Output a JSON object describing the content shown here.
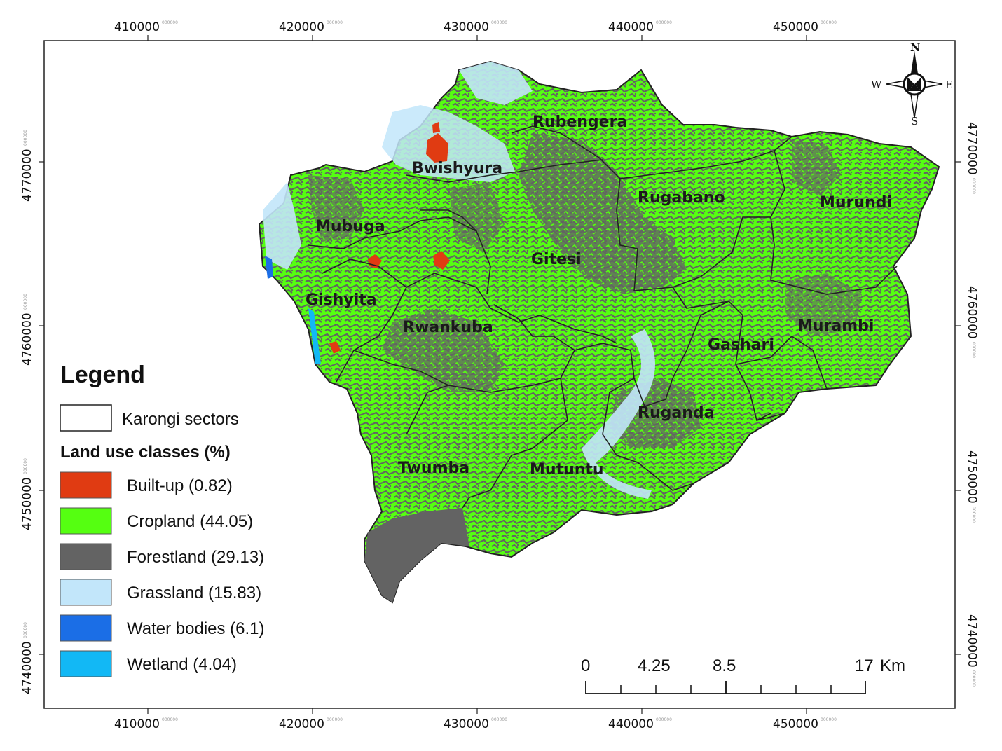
{
  "map": {
    "x_ticks": [
      {
        "main": "410000",
        "sup": "000000"
      },
      {
        "main": "420000",
        "sup": "000000"
      },
      {
        "main": "430000",
        "sup": "000000"
      },
      {
        "main": "440000",
        "sup": "000000"
      },
      {
        "main": "450000",
        "sup": "000000"
      }
    ],
    "y_ticks": [
      {
        "main": "4770000",
        "sup": "000000"
      },
      {
        "main": "4760000",
        "sup": "000000"
      },
      {
        "main": "4750000",
        "sup": "000000"
      },
      {
        "main": "4740000",
        "sup": "000000"
      }
    ],
    "sectors": [
      {
        "name": "Rubengera"
      },
      {
        "name": "Bwishyura"
      },
      {
        "name": "Rugabano"
      },
      {
        "name": "Murundi"
      },
      {
        "name": "Mubuga"
      },
      {
        "name": "Gitesi"
      },
      {
        "name": "Gishyita"
      },
      {
        "name": "Rwankuba"
      },
      {
        "name": "Murambi"
      },
      {
        "name": "Gashari"
      },
      {
        "name": "Ruganda"
      },
      {
        "name": "Twumba"
      },
      {
        "name": "Mutuntu"
      }
    ]
  },
  "legend": {
    "title": "Legend",
    "boundary_label": "Karongi sectors",
    "classes_title": "Land use classes (%)",
    "classes": [
      {
        "label": "Built-up (0.82)",
        "color": "#e03b12"
      },
      {
        "label": "Cropland (44.05)",
        "color": "#55ff11"
      },
      {
        "label": "Forestland (29.13)",
        "color": "#636363"
      },
      {
        "label": "Grassland (15.83)",
        "color": "#c2e6fa"
      },
      {
        "label": "Water bodies (6.1)",
        "color": "#1b6ee6"
      },
      {
        "label": "Wetland (4.04)",
        "color": "#12b8f5"
      }
    ]
  },
  "compass": {
    "n": "N",
    "s": "S",
    "e": "E",
    "w": "W"
  },
  "scalebar": {
    "labels": [
      "0",
      "4.25",
      "8.5",
      "17"
    ],
    "unit": "Km"
  }
}
